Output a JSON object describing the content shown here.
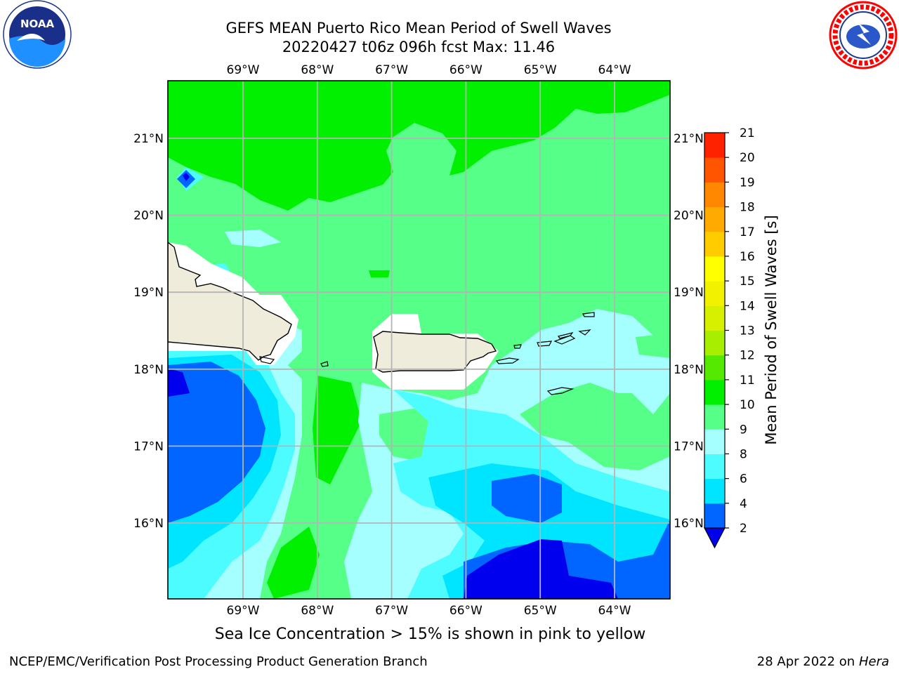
{
  "header": {
    "title_line1": "GEFS MEAN Puerto Rico Mean Period of Swell Waves",
    "title_line2": "20220427 t06z 096h fcst   Max: 11.46"
  },
  "map": {
    "lon_ticks": [
      "69°W",
      "68°W",
      "67°W",
      "66°W",
      "65°W",
      "64°W"
    ],
    "lat_ticks": [
      "21°N",
      "20°N",
      "19°N",
      "18°N",
      "17°N",
      "16°N"
    ],
    "colors": {
      "land": "#efecdc",
      "gridline": "#b4b4b4",
      "frame": "#000000"
    }
  },
  "colorbar": {
    "label": "Mean Period of Swell Waves [s]",
    "levels": [
      "2",
      "4",
      "6",
      "8",
      "9",
      "10",
      "11",
      "12",
      "13",
      "14",
      "15",
      "16",
      "17",
      "18",
      "19",
      "20",
      "21"
    ],
    "colors": [
      "#0066ff",
      "#00e5ff",
      "#4dfcff",
      "#a6ffff",
      "#55ff88",
      "#00f000",
      "#55e800",
      "#a8ee00",
      "#d6f000",
      "#f2f200",
      "#ffff00",
      "#ffcc00",
      "#ffaa00",
      "#ff8800",
      "#ff5500",
      "#ff2200"
    ],
    "under_color": "#0000ee"
  },
  "footer": {
    "note": "Sea Ice Concentration > 15% is shown in pink to yellow",
    "branch": "NCEP/EMC/Verification Post Processing Product Generation Branch",
    "date": "28 Apr 2022 on",
    "host": "Hera"
  },
  "logos": {
    "left": "noaa-logo",
    "left_text": "NOAA",
    "right": "nws-logo",
    "right_text": "NATIONAL WEATHER SERVICE"
  }
}
